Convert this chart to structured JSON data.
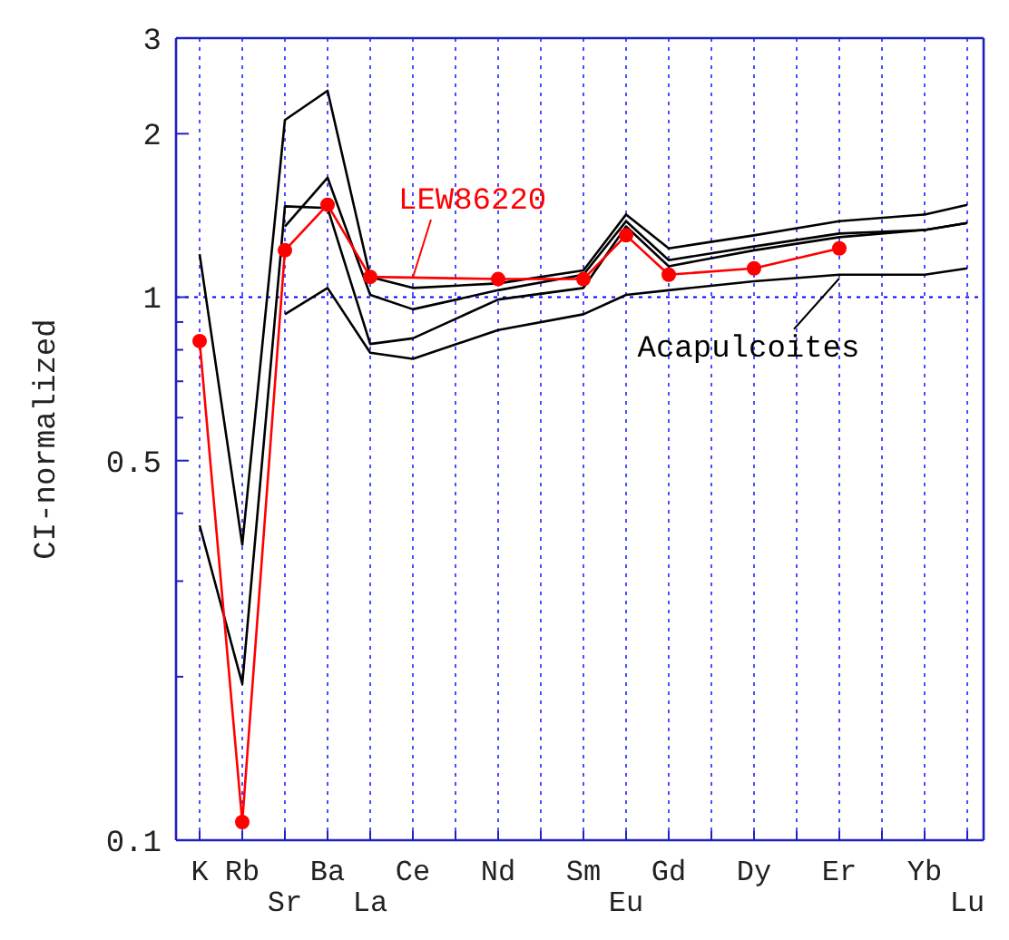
{
  "chart_data": {
    "type": "line",
    "ylabel": "CI-normalized",
    "log": true,
    "grid": "x",
    "categories": [
      "K",
      "Rb",
      "Sr",
      "Ba",
      "La",
      "Ce",
      null,
      "Nd",
      null,
      "Sm",
      "Eu",
      "Gd",
      null,
      "Dy",
      null,
      "Er",
      null,
      "Yb",
      "Lu"
    ],
    "ylim": [
      0.1,
      3
    ],
    "yticks": [
      0.1,
      {
        "value": 0.2,
        "label": null
      },
      {
        "value": 0.3,
        "label": null
      },
      {
        "value": 0.4,
        "label": null
      },
      0.5,
      {
        "value": 0.6,
        "label": null
      },
      {
        "value": 0.7,
        "label": null
      },
      {
        "value": 0.8,
        "label": null
      },
      {
        "value": 0.9,
        "label": null
      },
      1,
      2,
      3
    ],
    "ref_lines": [
      {
        "axis": "y",
        "value": 1,
        "color": "#0000ff",
        "line_style": "dotted"
      }
    ],
    "series": [
      {
        "color": "#000000",
        "marker": "none",
        "values": [
          1.2,
          0.35,
          2.12,
          2.4,
          1.09,
          1.04,
          null,
          1.06,
          null,
          1.12,
          1.42,
          1.23,
          null,
          1.3,
          null,
          1.38,
          null,
          1.42,
          1.48
        ]
      },
      {
        "color": "#000000",
        "marker": "none",
        "values": [
          null,
          null,
          1.35,
          1.66,
          1.01,
          0.95,
          null,
          1.03,
          null,
          1.1,
          1.38,
          1.17,
          null,
          1.24,
          null,
          1.31,
          null,
          1.33,
          1.37
        ]
      },
      {
        "color": "#000000",
        "marker": "none",
        "values": [
          0.38,
          0.194,
          1.47,
          1.46,
          0.82,
          0.84,
          null,
          0.99,
          null,
          1.04,
          1.35,
          1.14,
          null,
          1.22,
          null,
          1.29,
          null,
          1.33,
          1.37
        ]
      },
      {
        "color": "#000000",
        "marker": "none",
        "values": [
          null,
          null,
          0.93,
          1.04,
          0.79,
          0.77,
          null,
          0.87,
          null,
          0.93,
          1.01,
          1.03,
          null,
          1.07,
          null,
          1.1,
          null,
          1.1,
          1.13
        ]
      },
      {
        "name": "LEW86220",
        "color": "#ff0000",
        "marker": "circle",
        "values": [
          0.83,
          0.108,
          1.22,
          1.48,
          1.09,
          null,
          null,
          1.08,
          null,
          1.08,
          1.3,
          1.1,
          null,
          1.13,
          null,
          1.23,
          null,
          null,
          null
        ]
      }
    ],
    "annotations": [
      {
        "text": "Acapulcoites",
        "x": "Er",
        "y": 1.1
      }
    ]
  }
}
